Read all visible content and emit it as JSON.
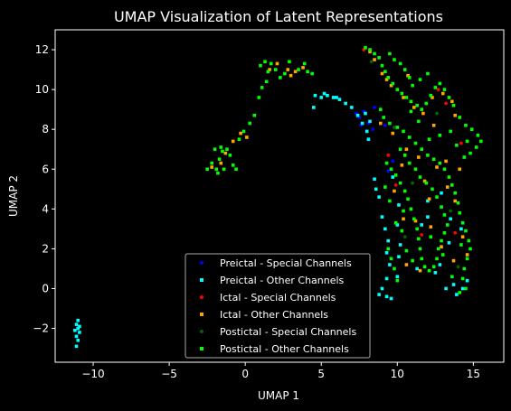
{
  "chart_data": {
    "type": "scatter",
    "title": "UMAP Visualization of Latent Representations",
    "xlabel": "UMAP 1",
    "ylabel": "UMAP 2",
    "xlim": [
      -12.5,
      17
    ],
    "ylim": [
      -3.7,
      13
    ],
    "xticks": [
      -10,
      -5,
      0,
      5,
      10,
      15
    ],
    "yticks": [
      -2,
      0,
      2,
      4,
      6,
      8,
      10,
      12
    ],
    "grid": false,
    "legend_position": "lower-center",
    "background": "#000000",
    "series": [
      {
        "name": "Preictal - Special Channels",
        "color": "#0000ff",
        "marker": "circle",
        "points": [
          [
            7.5,
            8.6
          ],
          [
            7.8,
            8.9
          ],
          [
            8.1,
            8.3
          ],
          [
            7.6,
            8.2
          ],
          [
            8.4,
            8.0
          ],
          [
            7.3,
            8.8
          ],
          [
            9.2,
            8.2
          ],
          [
            9.7,
            6.4
          ],
          [
            9.4,
            5.9
          ],
          [
            8.5,
            9.1
          ]
        ]
      },
      {
        "name": "Preictal - Other Channels",
        "color": "#00ffff",
        "marker": "square",
        "points": [
          [
            -11.0,
            -1.6
          ],
          [
            -11.1,
            -1.8
          ],
          [
            -11.0,
            -2.0
          ],
          [
            -10.9,
            -2.2
          ],
          [
            -11.1,
            -2.4
          ],
          [
            -11.0,
            -2.6
          ],
          [
            -10.9,
            -1.9
          ],
          [
            -11.1,
            -2.9
          ],
          [
            -11.2,
            -2.1
          ],
          [
            4.6,
            9.7
          ],
          [
            5.0,
            9.6
          ],
          [
            5.4,
            9.7
          ],
          [
            5.8,
            9.6
          ],
          [
            6.2,
            9.5
          ],
          [
            6.6,
            9.3
          ],
          [
            7.0,
            9.1
          ],
          [
            7.4,
            8.7
          ],
          [
            7.7,
            8.3
          ],
          [
            8.0,
            7.9
          ],
          [
            8.1,
            7.5
          ],
          [
            4.5,
            9.1
          ],
          [
            5.2,
            9.8
          ],
          [
            6.0,
            9.6
          ],
          [
            7.9,
            8.8
          ],
          [
            8.2,
            8.4
          ],
          [
            8.5,
            5.5
          ],
          [
            8.6,
            5.0
          ],
          [
            8.8,
            4.6
          ],
          [
            9.0,
            3.6
          ],
          [
            9.2,
            3.0
          ],
          [
            9.4,
            2.4
          ],
          [
            9.3,
            1.8
          ],
          [
            9.5,
            1.2
          ],
          [
            9.3,
            0.5
          ],
          [
            9.0,
            0.0
          ],
          [
            9.3,
            -0.4
          ],
          [
            9.6,
            -0.5
          ],
          [
            8.8,
            -0.3
          ],
          [
            10.1,
            4.2
          ],
          [
            10.0,
            3.2
          ],
          [
            10.2,
            2.2
          ],
          [
            10.1,
            1.6
          ],
          [
            10.0,
            0.6
          ],
          [
            9.7,
            5.6
          ],
          [
            11.6,
            3.2
          ],
          [
            12.0,
            4.4
          ],
          [
            12.8,
            1.2
          ],
          [
            12.5,
            0.8
          ],
          [
            13.4,
            2.3
          ],
          [
            13.7,
            0.2
          ],
          [
            13.9,
            -0.3
          ],
          [
            14.3,
            0.0
          ],
          [
            14.6,
            0.4
          ],
          [
            13.5,
            3.5
          ],
          [
            12.9,
            4.8
          ],
          [
            14.2,
            3.0
          ],
          [
            13.2,
            0.0
          ],
          [
            12.0,
            3.6
          ],
          [
            11.3,
            1.0
          ]
        ]
      },
      {
        "name": "Ictal - Special Channels",
        "color": "#ff0000",
        "marker": "circle",
        "points": [
          [
            7.8,
            12.0
          ],
          [
            9.4,
            6.7
          ],
          [
            11.6,
            2.7
          ],
          [
            12.7,
            10.0
          ],
          [
            13.8,
            2.8
          ],
          [
            14.2,
            7.3
          ],
          [
            9.9,
            5.2
          ],
          [
            13.2,
            9.3
          ]
        ]
      },
      {
        "name": "Ictal - Other Channels",
        "color": "#ffa500",
        "marker": "square",
        "points": [
          [
            -0.3,
            7.8
          ],
          [
            0.1,
            7.6
          ],
          [
            -1.3,
            6.8
          ],
          [
            -1.6,
            6.3
          ],
          [
            -2.2,
            6.1
          ],
          [
            -0.8,
            7.4
          ],
          [
            2.8,
            11.0
          ],
          [
            3.3,
            10.9
          ],
          [
            3.8,
            11.1
          ],
          [
            2.1,
            11.3
          ],
          [
            3.0,
            10.7
          ],
          [
            1.6,
            11.0
          ],
          [
            8.5,
            11.5
          ],
          [
            9.0,
            10.8
          ],
          [
            9.6,
            10.2
          ],
          [
            10.4,
            9.6
          ],
          [
            11.1,
            9.1
          ],
          [
            12.3,
            9.6
          ],
          [
            13.0,
            9.8
          ],
          [
            13.8,
            8.7
          ],
          [
            13.6,
            9.4
          ],
          [
            8.9,
            8.3
          ],
          [
            9.7,
            7.8
          ],
          [
            10.6,
            7.0
          ],
          [
            11.4,
            6.6
          ],
          [
            12.6,
            6.1
          ],
          [
            13.3,
            5.1
          ],
          [
            13.8,
            4.4
          ],
          [
            14.3,
            2.6
          ],
          [
            14.6,
            1.7
          ],
          [
            10.3,
            6.2
          ],
          [
            11.8,
            5.4
          ],
          [
            12.1,
            4.5
          ],
          [
            11.2,
            3.4
          ],
          [
            12.9,
            2.1
          ],
          [
            13.7,
            1.4
          ],
          [
            10.6,
            1.2
          ],
          [
            11.5,
            0.9
          ],
          [
            9.8,
            4.9
          ],
          [
            10.4,
            3.5
          ],
          [
            12.2,
            3.1
          ],
          [
            13.2,
            6.4
          ],
          [
            14.1,
            6.0
          ],
          [
            11.7,
            8.8
          ],
          [
            12.4,
            8.2
          ],
          [
            9.3,
            10.5
          ],
          [
            10.7,
            10.7
          ],
          [
            8.2,
            11.9
          ]
        ]
      },
      {
        "name": "Postictal - Special Channels",
        "color": "#006400",
        "marker": "circle",
        "points": [
          [
            8.1,
            -0.4
          ],
          [
            8.3,
            11.4
          ],
          [
            9.8,
            8.1
          ],
          [
            12.6,
            8.8
          ],
          [
            11.0,
            5.3
          ],
          [
            13.5,
            3.9
          ],
          [
            10.5,
            2.6
          ],
          [
            14.0,
            1.1
          ]
        ]
      },
      {
        "name": "Postictal - Other Channels",
        "color": "#00ff00",
        "marker": "square",
        "points": [
          [
            -2.5,
            6.0
          ],
          [
            -2.2,
            6.3
          ],
          [
            -1.9,
            6.0
          ],
          [
            -1.7,
            6.5
          ],
          [
            -1.5,
            6.9
          ],
          [
            -1.2,
            7.0
          ],
          [
            -1.0,
            6.7
          ],
          [
            -0.8,
            6.2
          ],
          [
            -0.6,
            6.0
          ],
          [
            -1.8,
            5.8
          ],
          [
            -1.4,
            6.0
          ],
          [
            -2.0,
            7.0
          ],
          [
            -1.6,
            7.1
          ],
          [
            -0.4,
            7.5
          ],
          [
            -0.1,
            7.9
          ],
          [
            0.3,
            8.3
          ],
          [
            0.6,
            8.7
          ],
          [
            0.9,
            9.6
          ],
          [
            1.1,
            10.1
          ],
          [
            1.4,
            10.4
          ],
          [
            1.0,
            11.2
          ],
          [
            1.3,
            11.4
          ],
          [
            1.7,
            11.3
          ],
          [
            2.0,
            11.0
          ],
          [
            2.3,
            10.6
          ],
          [
            2.6,
            10.8
          ],
          [
            3.5,
            11.0
          ],
          [
            4.1,
            10.9
          ],
          [
            4.4,
            10.8
          ],
          [
            3.9,
            11.3
          ],
          [
            1.5,
            10.9
          ],
          [
            2.9,
            11.4
          ],
          [
            7.9,
            12.1
          ],
          [
            8.2,
            12.0
          ],
          [
            8.5,
            11.8
          ],
          [
            8.8,
            11.6
          ],
          [
            9.0,
            11.2
          ],
          [
            9.2,
            10.9
          ],
          [
            9.4,
            10.6
          ],
          [
            9.7,
            10.3
          ],
          [
            10.0,
            10.0
          ],
          [
            10.3,
            9.8
          ],
          [
            10.6,
            9.6
          ],
          [
            10.9,
            9.4
          ],
          [
            11.3,
            9.2
          ],
          [
            11.6,
            9.0
          ],
          [
            11.9,
            9.3
          ],
          [
            12.2,
            9.7
          ],
          [
            12.5,
            10.1
          ],
          [
            12.8,
            10.3
          ],
          [
            13.1,
            10.0
          ],
          [
            13.4,
            9.6
          ],
          [
            13.7,
            9.2
          ],
          [
            14.1,
            8.6
          ],
          [
            14.5,
            8.2
          ],
          [
            14.9,
            8.0
          ],
          [
            15.3,
            7.7
          ],
          [
            15.5,
            7.4
          ],
          [
            15.2,
            7.1
          ],
          [
            14.8,
            6.8
          ],
          [
            14.4,
            6.6
          ],
          [
            9.5,
            11.8
          ],
          [
            9.8,
            11.5
          ],
          [
            10.2,
            11.3
          ],
          [
            10.5,
            11.0
          ],
          [
            10.8,
            10.6
          ],
          [
            11.0,
            10.2
          ],
          [
            11.5,
            10.5
          ],
          [
            12.0,
            10.8
          ],
          [
            8.9,
            9.0
          ],
          [
            9.1,
            8.6
          ],
          [
            9.5,
            8.3
          ],
          [
            10.0,
            8.1
          ],
          [
            10.4,
            7.9
          ],
          [
            10.8,
            7.6
          ],
          [
            11.2,
            7.3
          ],
          [
            11.6,
            7.0
          ],
          [
            12.0,
            6.7
          ],
          [
            12.4,
            6.5
          ],
          [
            12.8,
            6.3
          ],
          [
            13.1,
            6.0
          ],
          [
            13.4,
            5.6
          ],
          [
            13.6,
            5.2
          ],
          [
            13.8,
            4.8
          ],
          [
            14.0,
            4.3
          ],
          [
            14.1,
            3.8
          ],
          [
            14.3,
            3.3
          ],
          [
            14.5,
            2.9
          ],
          [
            14.7,
            2.4
          ],
          [
            14.8,
            2.0
          ],
          [
            14.6,
            1.5
          ],
          [
            14.4,
            1.0
          ],
          [
            14.3,
            0.5
          ],
          [
            14.5,
            0.0
          ],
          [
            14.1,
            -0.2
          ],
          [
            9.3,
            6.3
          ],
          [
            9.6,
            6.0
          ],
          [
            9.9,
            5.7
          ],
          [
            10.2,
            5.3
          ],
          [
            10.5,
            4.9
          ],
          [
            10.7,
            4.5
          ],
          [
            10.9,
            4.0
          ],
          [
            11.1,
            3.5
          ],
          [
            11.3,
            3.0
          ],
          [
            11.4,
            2.5
          ],
          [
            11.5,
            2.0
          ],
          [
            11.6,
            1.5
          ],
          [
            11.8,
            1.1
          ],
          [
            12.1,
            0.9
          ],
          [
            12.4,
            1.1
          ],
          [
            12.6,
            1.5
          ],
          [
            12.7,
            2.0
          ],
          [
            12.9,
            2.4
          ],
          [
            13.1,
            2.8
          ],
          [
            13.3,
            3.2
          ],
          [
            13.1,
            3.7
          ],
          [
            12.9,
            4.1
          ],
          [
            12.6,
            4.6
          ],
          [
            12.3,
            5.0
          ],
          [
            11.9,
            5.3
          ],
          [
            11.5,
            5.6
          ],
          [
            11.2,
            6.0
          ],
          [
            10.8,
            6.3
          ],
          [
            10.5,
            6.7
          ],
          [
            10.2,
            7.0
          ],
          [
            9.4,
            2.0
          ],
          [
            9.6,
            1.5
          ],
          [
            9.8,
            1.0
          ],
          [
            10.0,
            0.4
          ],
          [
            10.3,
            2.9
          ],
          [
            10.4,
            3.9
          ],
          [
            10.6,
            1.9
          ],
          [
            11.0,
            1.4
          ],
          [
            12.2,
            2.6
          ],
          [
            13.0,
            1.7
          ],
          [
            13.6,
            0.6
          ],
          [
            14.2,
            2.2
          ],
          [
            9.5,
            4.4
          ],
          [
            9.2,
            5.1
          ],
          [
            9.9,
            3.3
          ],
          [
            12.1,
            7.5
          ],
          [
            12.8,
            7.7
          ],
          [
            13.5,
            7.9
          ],
          [
            11.4,
            8.4
          ],
          [
            10.9,
            8.9
          ],
          [
            13.9,
            7.2
          ],
          [
            14.6,
            7.4
          ]
        ]
      }
    ]
  }
}
